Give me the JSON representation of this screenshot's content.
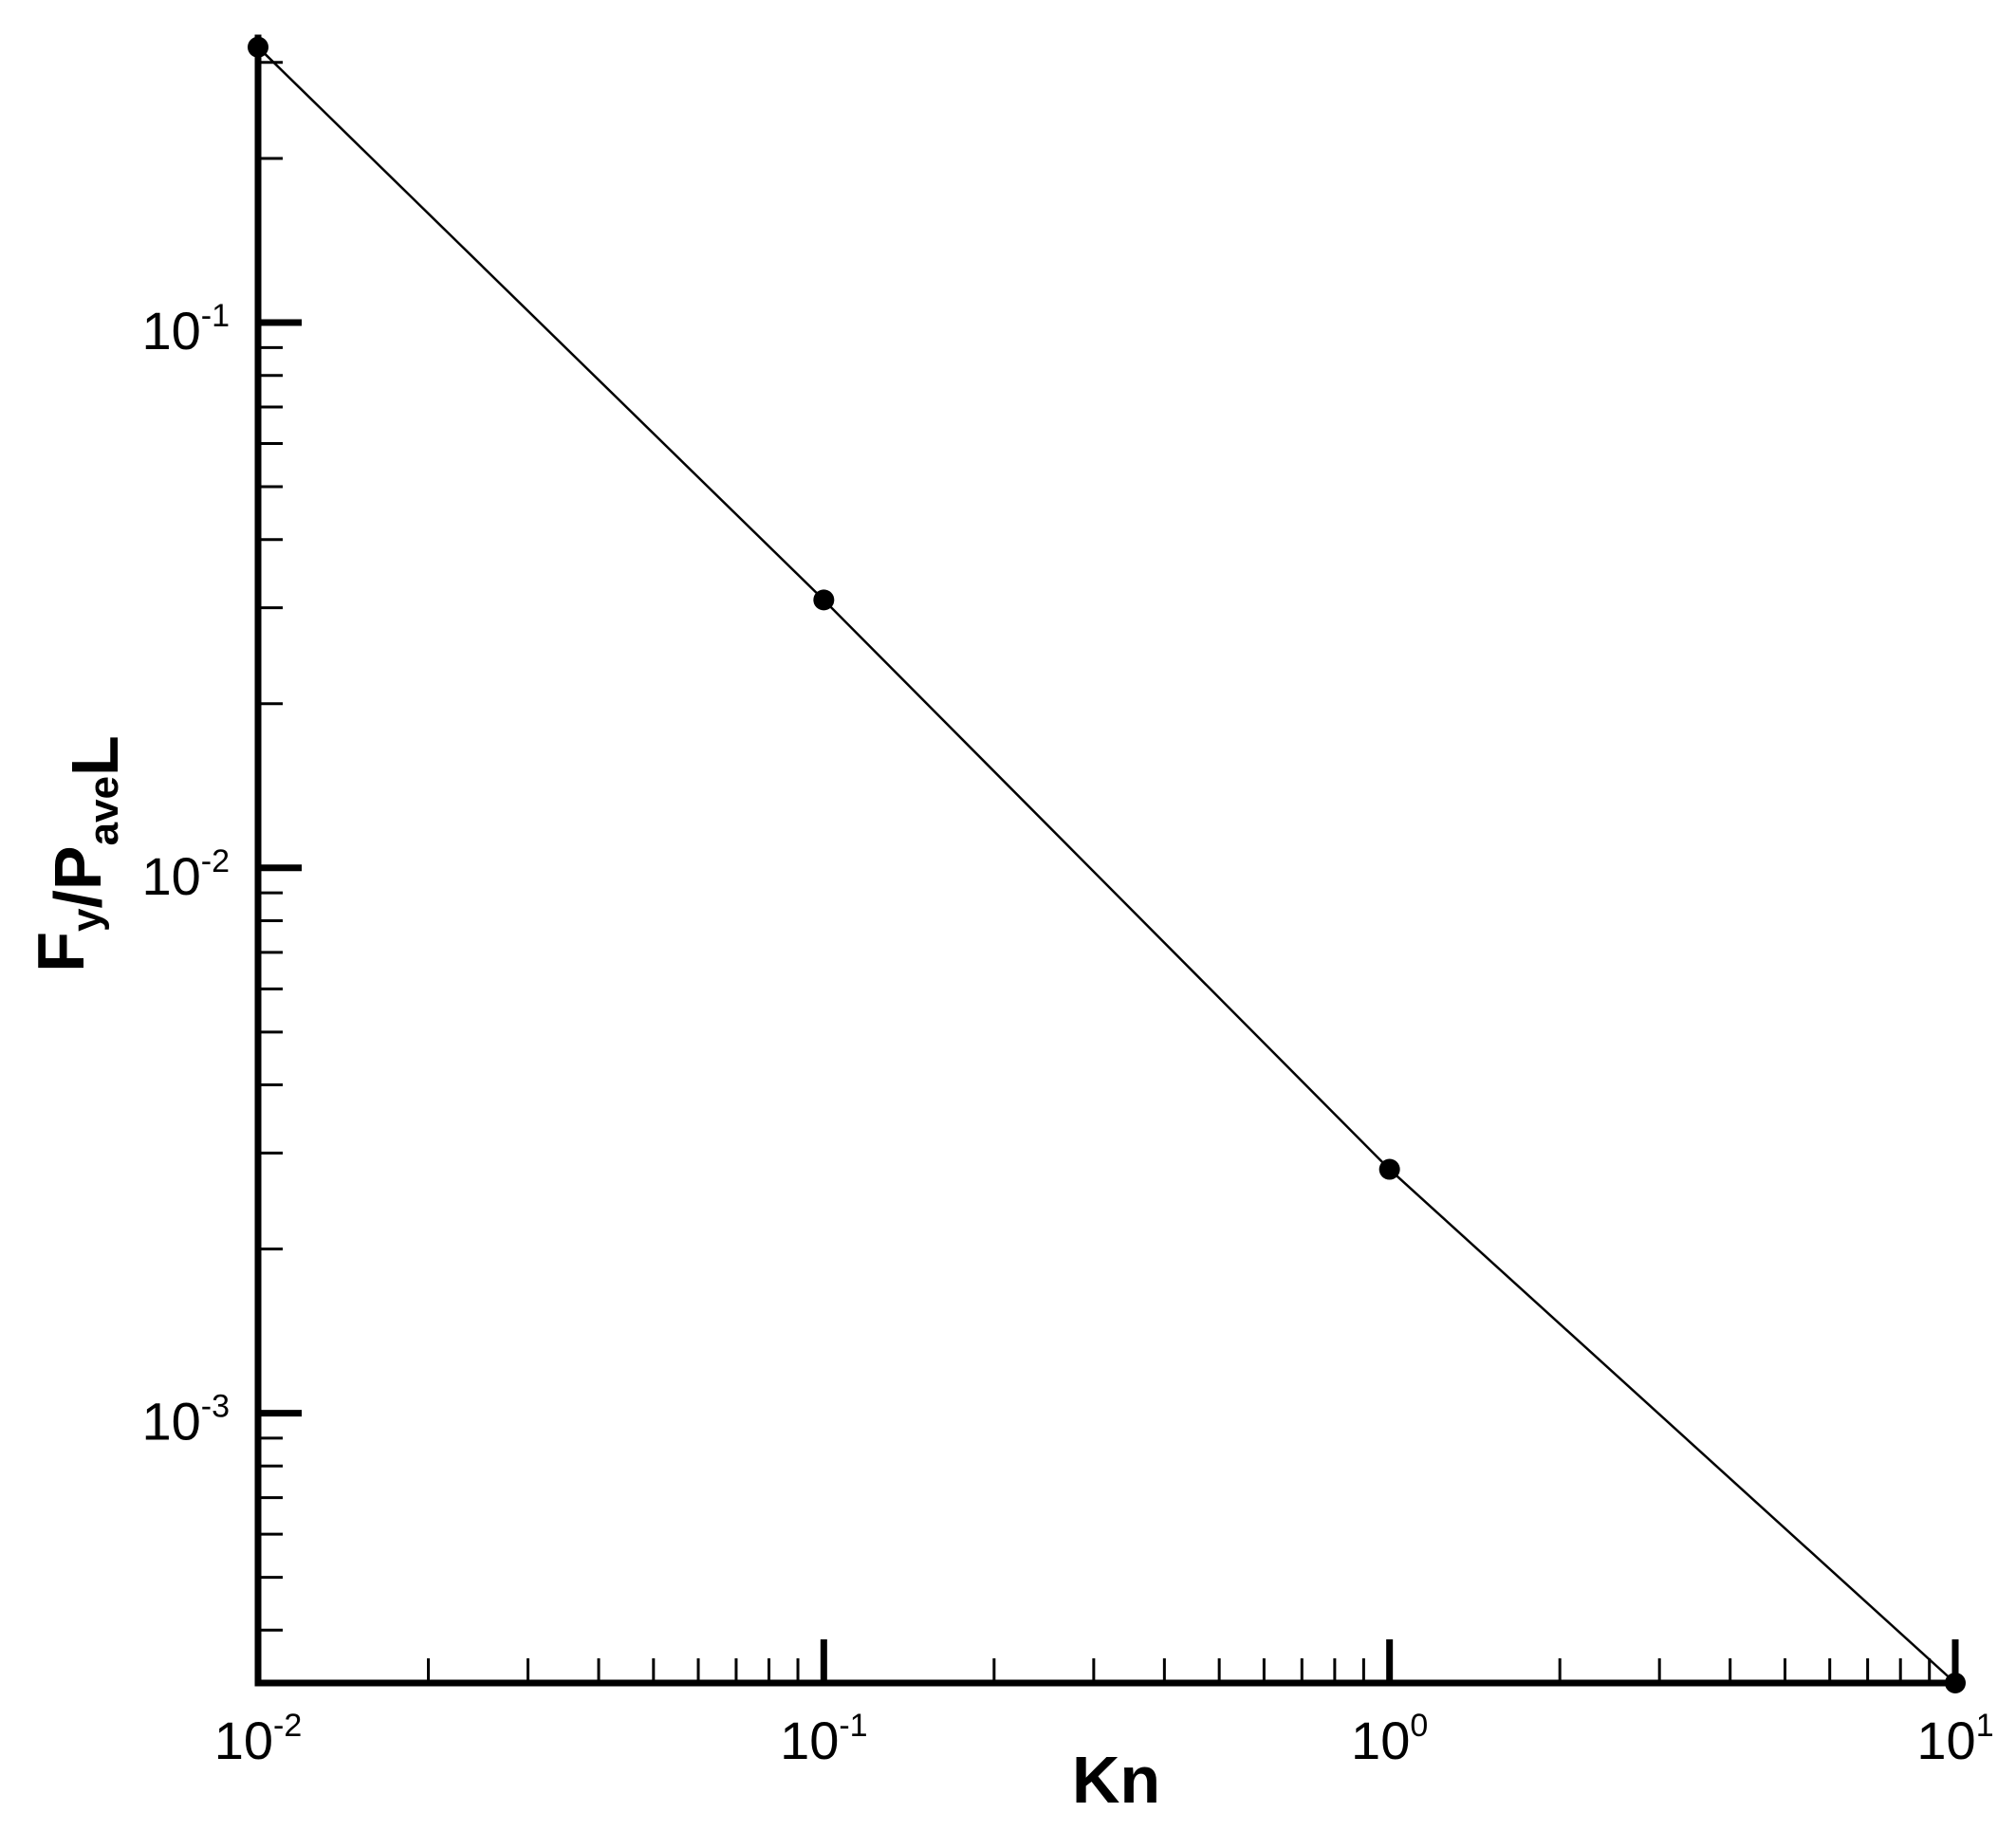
{
  "chart_data": {
    "type": "line",
    "xscale": "log",
    "yscale": "log",
    "xlabel": {
      "base": "Kn"
    },
    "ylabel": {
      "parts": [
        {
          "text": "F",
          "sub": "y"
        },
        {
          "text": "/P",
          "sub": "ave"
        },
        {
          "text": "L",
          "sub": ""
        }
      ]
    },
    "xlim": [
      0.01,
      10
    ],
    "ylim": [
      0.00032,
      0.33
    ],
    "x_ticks": [
      {
        "value": 0.01,
        "base": "10",
        "exp": "-2"
      },
      {
        "value": 0.1,
        "base": "10",
        "exp": "-1"
      },
      {
        "value": 1,
        "base": "10",
        "exp": "0"
      },
      {
        "value": 10,
        "base": "10",
        "exp": "1"
      }
    ],
    "y_ticks": [
      {
        "value": 0.001,
        "base": "10",
        "exp": "-3"
      },
      {
        "value": 0.01,
        "base": "10",
        "exp": "-2"
      },
      {
        "value": 0.1,
        "base": "10",
        "exp": "-1"
      }
    ],
    "grid": false,
    "series": [
      {
        "x": [
          0.01,
          0.1,
          1,
          10
        ],
        "y": [
          0.32,
          0.031,
          0.0028,
          0.00032
        ],
        "marker": "circle",
        "color": "#000000"
      }
    ]
  }
}
